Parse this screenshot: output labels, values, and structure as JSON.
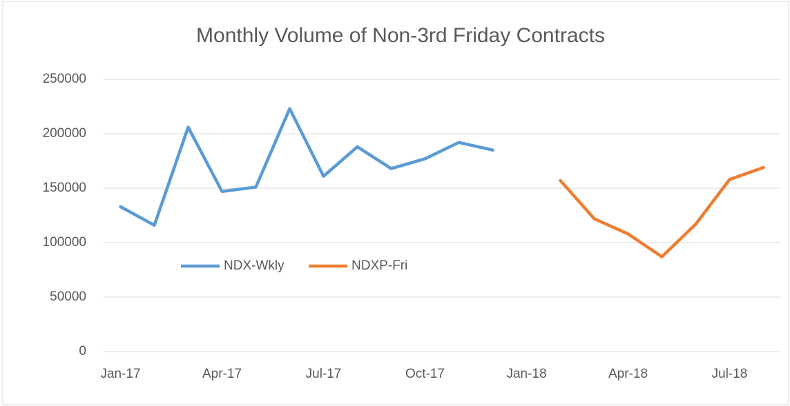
{
  "chart_data": {
    "type": "line",
    "title": "Monthly Volume of Non-3rd Friday Contracts",
    "categories": [
      "Jan-17",
      null,
      null,
      "Apr-17",
      null,
      null,
      "Jul-17",
      null,
      null,
      "Oct-17",
      null,
      null,
      "Jan-18",
      null,
      null,
      "Apr-18",
      null,
      null,
      "Jul-18",
      null
    ],
    "series": [
      {
        "name": "NDX-Wkly",
        "color": "#5b9bd5",
        "values": [
          133000,
          116000,
          206000,
          147000,
          151000,
          223000,
          161000,
          188000,
          168000,
          177000,
          192000,
          185000,
          null,
          null,
          null,
          null,
          null,
          null,
          null,
          null
        ]
      },
      {
        "name": "NDXP-Fri",
        "color": "#ed7d31",
        "values": [
          null,
          null,
          null,
          null,
          null,
          null,
          null,
          null,
          null,
          null,
          null,
          null,
          null,
          157000,
          122000,
          108000,
          87000,
          117000,
          158000,
          169000
        ]
      }
    ],
    "ylim": [
      0,
      250000
    ],
    "yticks": [
      0,
      50000,
      100000,
      150000,
      200000,
      250000
    ],
    "grid": true
  }
}
